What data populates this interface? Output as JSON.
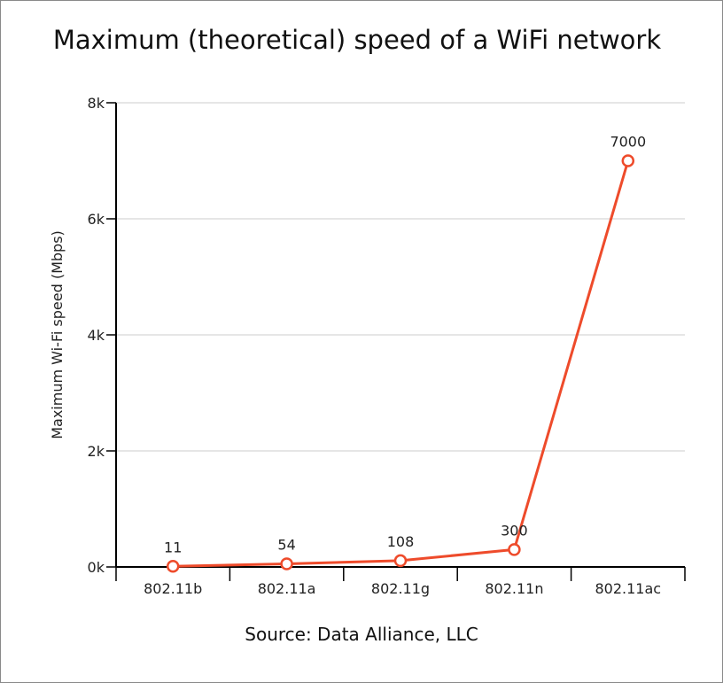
{
  "chart_data": {
    "type": "line",
    "title": "Maximum (theoretical) speed of a WiFi network",
    "source": "Source: Data Alliance, LLC",
    "xlabel": "",
    "ylabel": "Maximum Wi-Fi speed (Mbps)",
    "categories": [
      "802.11b",
      "802.11a",
      "802.11g",
      "802.11n",
      "802.11ac"
    ],
    "series": [
      {
        "values": [
          11,
          54,
          108,
          300,
          7000
        ],
        "labels": [
          "11",
          "54",
          "108",
          "300",
          "7000"
        ]
      }
    ],
    "ylim": [
      0,
      8000
    ],
    "yticks": [
      0,
      2000,
      4000,
      6000,
      8000
    ],
    "ytick_labels": [
      "0k",
      "2k",
      "4k",
      "6k",
      "8k"
    ],
    "grid": true,
    "legend": "none",
    "colors": {
      "line": "#ee4b2b",
      "marker_fill": "#ffffff",
      "grid": "#cccccc",
      "axis": "#000000"
    }
  }
}
